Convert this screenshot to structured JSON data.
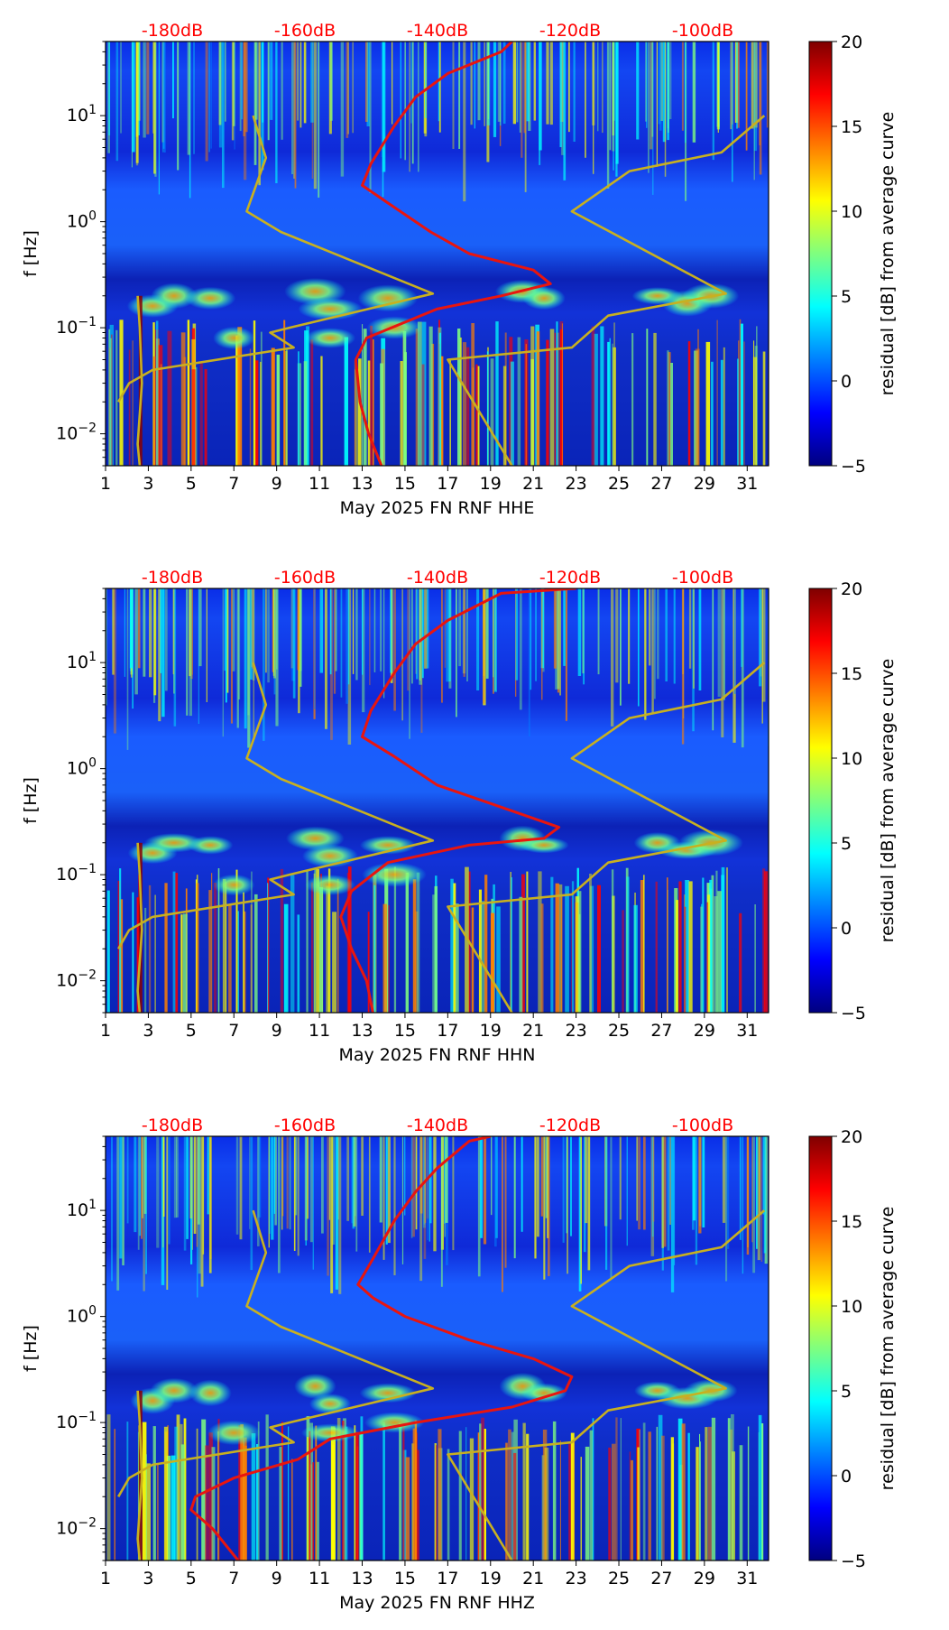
{
  "colors": {
    "reference_curves": "#c8b020",
    "average_curve": "#e8150f",
    "top_labels": "#ff0000",
    "colormap": [
      "#00007f",
      "#0000ff",
      "#007fff",
      "#00ffff",
      "#7fff7f",
      "#ffff00",
      "#ff7f00",
      "#ff0000",
      "#7f0000"
    ]
  },
  "chart_data": [
    {
      "type": "heatmap",
      "title": "",
      "xlabel": "May 2025 FN RNF  HHE",
      "ylabel": "f [Hz]",
      "xlim": [
        1,
        32
      ],
      "ylim": [
        0.005,
        50
      ],
      "yscale": "log",
      "x_tick_labels": [
        "1",
        "3",
        "5",
        "7",
        "9",
        "11",
        "13",
        "15",
        "17",
        "19",
        "21",
        "23",
        "25",
        "27",
        "29",
        "31"
      ],
      "y_tick_labels": [
        {
          "value": 0.01,
          "label": "10^-2"
        },
        {
          "value": 0.1,
          "label": "10^-1"
        },
        {
          "value": 1,
          "label": "10^0"
        },
        {
          "value": 10,
          "label": "10^1"
        }
      ],
      "top_axis_labels": [
        "-180dB",
        "-160dB",
        "-140dB",
        "-120dB",
        "-100dB"
      ],
      "colorbar": {
        "label": "residual [dB] from average curve",
        "min": -5,
        "max": 20,
        "ticks": [
          -5,
          0,
          5,
          10,
          15,
          20
        ]
      },
      "series": [
        {
          "values": [
            [
              2.6,
              0.005
            ],
            [
              2.5,
              0.008
            ],
            [
              2.7,
              0.03
            ],
            [
              2.6,
              0.1
            ],
            [
              2.5,
              0.2
            ]
          ]
        },
        {
          "values": [
            [
              20,
              0.005
            ],
            [
              17,
              0.05
            ],
            [
              22.8,
              0.065
            ],
            [
              24.5,
              0.13
            ],
            [
              30,
              0.21
            ],
            [
              22.8,
              1.25
            ],
            [
              25.5,
              3.0
            ],
            [
              29.8,
              4.5
            ],
            [
              31.8,
              10
            ]
          ]
        },
        {
          "values": [
            [
              1.6,
              0.02
            ],
            [
              2.1,
              0.03
            ],
            [
              3.2,
              0.04
            ],
            [
              9.8,
              0.065
            ],
            [
              8.7,
              0.09
            ],
            [
              9.6,
              0.1
            ],
            [
              16.3,
              0.21
            ],
            [
              9.2,
              0.8
            ],
            [
              7.6,
              1.25
            ],
            [
              8.5,
              4
            ],
            [
              7.9,
              10
            ]
          ]
        },
        {
          "values": [
            [
              13.9,
              0.005
            ],
            [
              13.3,
              0.01
            ],
            [
              12.9,
              0.02
            ],
            [
              12.7,
              0.05
            ],
            [
              13.2,
              0.08
            ],
            [
              16.5,
              0.15
            ],
            [
              19.5,
              0.2
            ],
            [
              21.8,
              0.26
            ],
            [
              21.0,
              0.35
            ],
            [
              18.0,
              0.5
            ],
            [
              16.2,
              0.8
            ],
            [
              14.2,
              1.5
            ],
            [
              13.0,
              2.2
            ],
            [
              13.4,
              3.5
            ],
            [
              14.5,
              8
            ],
            [
              15.5,
              15
            ],
            [
              17.0,
              25
            ],
            [
              19.5,
              40
            ],
            [
              20.0,
              50
            ]
          ]
        }
      ]
    },
    {
      "type": "heatmap",
      "title": "",
      "xlabel": "May 2025 FN RNF  HHN",
      "ylabel": "f [Hz]",
      "xlim": [
        1,
        32
      ],
      "ylim": [
        0.005,
        50
      ],
      "yscale": "log",
      "x_tick_labels": [
        "1",
        "3",
        "5",
        "7",
        "9",
        "11",
        "13",
        "15",
        "17",
        "19",
        "21",
        "23",
        "25",
        "27",
        "29",
        "31"
      ],
      "y_tick_labels": [
        {
          "value": 0.01,
          "label": "10^-2"
        },
        {
          "value": 0.1,
          "label": "10^-1"
        },
        {
          "value": 1,
          "label": "10^0"
        },
        {
          "value": 10,
          "label": "10^1"
        }
      ],
      "top_axis_labels": [
        "-180dB",
        "-160dB",
        "-140dB",
        "-120dB",
        "-100dB"
      ],
      "colorbar": {
        "label": "residual [dB] from average curve",
        "min": -5,
        "max": 20,
        "ticks": [
          -5,
          0,
          5,
          10,
          15,
          20
        ]
      },
      "series": [
        {
          "values": [
            [
              2.6,
              0.005
            ],
            [
              2.5,
              0.008
            ],
            [
              2.7,
              0.03
            ],
            [
              2.6,
              0.1
            ],
            [
              2.5,
              0.2
            ]
          ]
        },
        {
          "values": [
            [
              20,
              0.005
            ],
            [
              17,
              0.05
            ],
            [
              22.8,
              0.065
            ],
            [
              24.5,
              0.13
            ],
            [
              30,
              0.21
            ],
            [
              22.8,
              1.25
            ],
            [
              25.5,
              3.0
            ],
            [
              29.8,
              4.5
            ],
            [
              31.8,
              10
            ]
          ]
        },
        {
          "values": [
            [
              1.6,
              0.02
            ],
            [
              2.1,
              0.03
            ],
            [
              3.2,
              0.04
            ],
            [
              9.8,
              0.065
            ],
            [
              8.7,
              0.09
            ],
            [
              9.6,
              0.1
            ],
            [
              16.3,
              0.21
            ],
            [
              9.2,
              0.8
            ],
            [
              7.6,
              1.25
            ],
            [
              8.5,
              4
            ],
            [
              7.9,
              10
            ]
          ]
        },
        {
          "values": [
            [
              13.5,
              0.005
            ],
            [
              13.2,
              0.01
            ],
            [
              12.5,
              0.02
            ],
            [
              12.0,
              0.04
            ],
            [
              12.5,
              0.07
            ],
            [
              14.2,
              0.13
            ],
            [
              18.0,
              0.19
            ],
            [
              21.5,
              0.22
            ],
            [
              22.2,
              0.28
            ],
            [
              20.0,
              0.4
            ],
            [
              16.5,
              0.7
            ],
            [
              14.5,
              1.3
            ],
            [
              13.0,
              2.0
            ],
            [
              13.4,
              3.5
            ],
            [
              14.5,
              8
            ],
            [
              15.5,
              15
            ],
            [
              17.0,
              25
            ],
            [
              19.5,
              45
            ],
            [
              23.0,
              50
            ]
          ]
        }
      ]
    },
    {
      "type": "heatmap",
      "title": "",
      "xlabel": "May 2025 FN RNF  HHZ",
      "ylabel": "f [Hz]",
      "xlim": [
        1,
        32
      ],
      "ylim": [
        0.005,
        50
      ],
      "yscale": "log",
      "x_tick_labels": [
        "1",
        "3",
        "5",
        "7",
        "9",
        "11",
        "13",
        "15",
        "17",
        "19",
        "21",
        "23",
        "25",
        "27",
        "29",
        "31"
      ],
      "y_tick_labels": [
        {
          "value": 0.01,
          "label": "10^-2"
        },
        {
          "value": 0.1,
          "label": "10^-1"
        },
        {
          "value": 1,
          "label": "10^0"
        },
        {
          "value": 10,
          "label": "10^1"
        }
      ],
      "top_axis_labels": [
        "-180dB",
        "-160dB",
        "-140dB",
        "-120dB",
        "-100dB"
      ],
      "colorbar": {
        "label": "residual [dB] from average curve",
        "min": -5,
        "max": 20,
        "ticks": [
          -5,
          0,
          5,
          10,
          15,
          20
        ]
      },
      "series": [
        {
          "values": [
            [
              2.6,
              0.005
            ],
            [
              2.5,
              0.008
            ],
            [
              2.7,
              0.03
            ],
            [
              2.6,
              0.1
            ],
            [
              2.5,
              0.2
            ]
          ]
        },
        {
          "values": [
            [
              20,
              0.005
            ],
            [
              17,
              0.05
            ],
            [
              22.8,
              0.065
            ],
            [
              24.5,
              0.13
            ],
            [
              30,
              0.21
            ],
            [
              22.8,
              1.25
            ],
            [
              25.5,
              3.0
            ],
            [
              29.8,
              4.5
            ],
            [
              31.8,
              10
            ]
          ]
        },
        {
          "values": [
            [
              1.6,
              0.02
            ],
            [
              2.1,
              0.03
            ],
            [
              3.2,
              0.04
            ],
            [
              9.8,
              0.065
            ],
            [
              8.7,
              0.09
            ],
            [
              9.6,
              0.1
            ],
            [
              16.3,
              0.21
            ],
            [
              9.2,
              0.8
            ],
            [
              7.6,
              1.25
            ],
            [
              8.5,
              4
            ],
            [
              7.9,
              10
            ]
          ]
        },
        {
          "values": [
            [
              7.2,
              0.005
            ],
            [
              6.0,
              0.01
            ],
            [
              5.0,
              0.015
            ],
            [
              5.2,
              0.02
            ],
            [
              7.0,
              0.03
            ],
            [
              10.0,
              0.045
            ],
            [
              11.5,
              0.07
            ],
            [
              15.5,
              0.1
            ],
            [
              20.0,
              0.14
            ],
            [
              22.5,
              0.2
            ],
            [
              22.8,
              0.27
            ],
            [
              21.0,
              0.4
            ],
            [
              18.0,
              0.6
            ],
            [
              15.0,
              1.0
            ],
            [
              13.5,
              1.5
            ],
            [
              12.8,
              2.0
            ],
            [
              13.5,
              3.5
            ],
            [
              14.5,
              8
            ],
            [
              15.5,
              15
            ],
            [
              16.5,
              25
            ],
            [
              18.0,
              45
            ],
            [
              19.0,
              50
            ]
          ]
        }
      ]
    }
  ]
}
